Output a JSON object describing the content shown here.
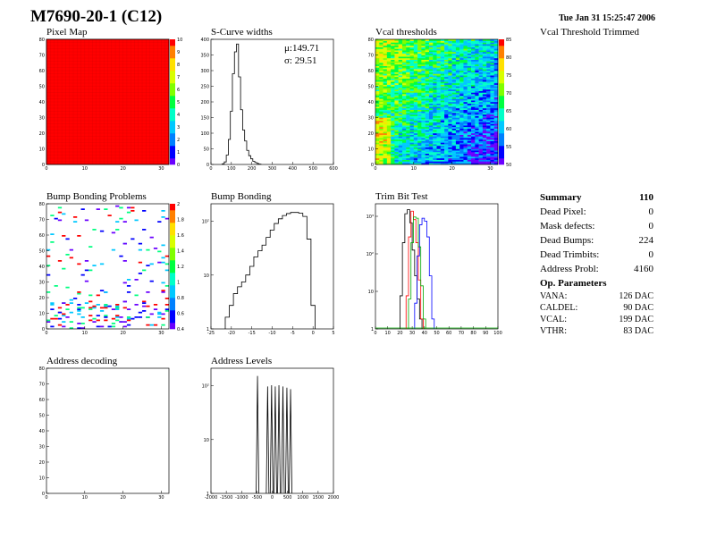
{
  "header": {
    "title": "M7690-20-1 (C12)",
    "date": "Tue Jan 31 15:25:47 2006"
  },
  "side_label": "Vcal Threshold Trimmed",
  "summary": {
    "title": "Summary",
    "total": "110",
    "rows": [
      {
        "label": "Dead Pixel:",
        "value": "0"
      },
      {
        "label": "Mask defects:",
        "value": "0"
      },
      {
        "label": "Dead Bumps:",
        "value": "224"
      },
      {
        "label": "Dead Trimbits:",
        "value": "0"
      },
      {
        "label": "Address Probl:",
        "value": "4160"
      }
    ]
  },
  "op_params": {
    "title": "Op. Parameters",
    "rows": [
      {
        "label": "VANA:",
        "value": "126 DAC"
      },
      {
        "label": "CALDEL:",
        "value": "90 DAC"
      },
      {
        "label": "VCAL:",
        "value": "199 DAC"
      },
      {
        "label": "VTHR:",
        "value": "83 DAC"
      }
    ]
  },
  "chart_data": [
    {
      "id": "pixel-map",
      "type": "heatmap",
      "title": "Pixel Map",
      "xticks": [
        "0",
        "10",
        "20",
        "30"
      ],
      "yticks": [
        "0",
        "10",
        "20",
        "30",
        "40",
        "50",
        "60",
        "70",
        "80"
      ],
      "zticks": [
        "0",
        "1",
        "2",
        "3",
        "4",
        "5",
        "6",
        "7",
        "8",
        "9",
        "10"
      ],
      "xlim": [
        0,
        32
      ],
      "ylim": [
        0,
        80
      ],
      "zlim": [
        0,
        10
      ],
      "fill_value": 10,
      "fill_color": "#ff0000"
    },
    {
      "id": "s-curve-widths",
      "type": "histogram",
      "title": "S-Curve widths",
      "xticks": [
        "0",
        "100",
        "200",
        "300",
        "400",
        "500",
        "600"
      ],
      "yticks": [
        "0",
        "50",
        "100",
        "150",
        "200",
        "250",
        "300",
        "350",
        "400"
      ],
      "xlim": [
        0,
        600
      ],
      "ylim": [
        0,
        400
      ],
      "stats": [
        {
          "label": "μ:",
          "value": "149.71"
        },
        {
          "label": "σ:",
          "value": "29.51"
        }
      ],
      "x": [
        60,
        70,
        80,
        90,
        100,
        110,
        120,
        130,
        140,
        150,
        160,
        170,
        180,
        190,
        200,
        210,
        220,
        230,
        240
      ],
      "y": [
        2,
        8,
        30,
        80,
        170,
        290,
        360,
        385,
        280,
        175,
        110,
        75,
        45,
        28,
        18,
        10,
        6,
        3,
        1
      ]
    },
    {
      "id": "vcal-thresholds",
      "type": "heatmap",
      "title": "Vcal thresholds",
      "xticks": [
        "0",
        "10",
        "20",
        "30"
      ],
      "yticks": [
        "0",
        "10",
        "20",
        "30",
        "40",
        "50",
        "60",
        "70",
        "80"
      ],
      "zticks": [
        "50",
        "55",
        "60",
        "65",
        "70",
        "75",
        "80",
        "85"
      ],
      "xlim": [
        0,
        32
      ],
      "ylim": [
        0,
        80
      ],
      "zlim": [
        48,
        88
      ]
    },
    {
      "id": "bump-bonding-problems",
      "type": "heatmap",
      "title": "Bump Bonding Problems",
      "xticks": [
        "0",
        "10",
        "20",
        "30"
      ],
      "yticks": [
        "0",
        "10",
        "20",
        "30",
        "40",
        "50",
        "60",
        "70",
        "80"
      ],
      "zticks": [
        "0.4",
        "0.6",
        "0.8",
        "1",
        "1.2",
        "1.4",
        "1.6",
        "1.8",
        "2"
      ],
      "xlim": [
        0,
        32
      ],
      "ylim": [
        0,
        80
      ]
    },
    {
      "id": "bump-bonding",
      "type": "histogram",
      "title": "Bump Bonding",
      "yscale": "log",
      "xticks": [
        "-25",
        "-20",
        "-15",
        "-10",
        "-5",
        "0",
        "5"
      ],
      "yticks": [
        "1",
        "10",
        "10²"
      ],
      "xlim": [
        -25,
        5
      ],
      "ylim": [
        0.5,
        800
      ],
      "x": [
        -21,
        -20,
        -19,
        -18,
        -17,
        -16,
        -15,
        -14,
        -13,
        -12,
        -11,
        -10,
        -9,
        -8,
        -7,
        -6,
        -5,
        -4,
        -3,
        -2,
        -1,
        0
      ],
      "y": [
        1,
        2,
        4,
        6,
        8,
        12,
        20,
        35,
        50,
        70,
        110,
        170,
        250,
        330,
        400,
        450,
        480,
        480,
        460,
        380,
        100,
        2
      ]
    },
    {
      "id": "trim-bit-test",
      "type": "histogram",
      "title": "Trim Bit Test",
      "yscale": "log",
      "xticks": [
        "0",
        "10",
        "20",
        "30",
        "40",
        "50",
        "60",
        "70",
        "80",
        "90",
        "100"
      ],
      "yticks": [
        "1",
        "10",
        "10²",
        "10³"
      ],
      "xlim": [
        0,
        100
      ],
      "ylim": [
        0.5,
        3000
      ],
      "series": [
        {
          "color": "#000000",
          "x": [
            21,
            23,
            25,
            27,
            29,
            31,
            33,
            35,
            37
          ],
          "y": [
            5,
            200,
            1500,
            2000,
            800,
            120,
            20,
            4,
            1
          ]
        },
        {
          "color": "#ff0000",
          "x": [
            26,
            28,
            30,
            32,
            34,
            36,
            38
          ],
          "y": [
            5,
            300,
            1800,
            1000,
            200,
            15,
            1
          ]
        },
        {
          "color": "#00aa00",
          "x": [
            28,
            30,
            32,
            34,
            36,
            38,
            40
          ],
          "y": [
            4,
            200,
            1200,
            1100,
            150,
            10,
            1
          ]
        },
        {
          "color": "#0000ff",
          "x": [
            33,
            35,
            37,
            39,
            41,
            43,
            45,
            47
          ],
          "y": [
            3,
            80,
            700,
            1100,
            900,
            300,
            20,
            1
          ]
        }
      ]
    },
    {
      "id": "address-decoding",
      "type": "heatmap",
      "title": "Address decoding",
      "xticks": [
        "0",
        "10",
        "20",
        "30"
      ],
      "yticks": [
        "0",
        "10",
        "20",
        "30",
        "40",
        "50",
        "60",
        "70",
        "80"
      ],
      "xlim": [
        0,
        32
      ],
      "ylim": [
        0,
        80
      ]
    },
    {
      "id": "address-levels",
      "type": "histogram",
      "title": "Address Levels",
      "yscale": "log",
      "xticks": [
        "-2000",
        "-1500",
        "-1000",
        "-500",
        "0",
        "500",
        "1000",
        "1500",
        "2000"
      ],
      "yticks": [
        "1",
        "10",
        "10²"
      ],
      "xlim": [
        -2000,
        2000
      ],
      "ylim": [
        0.5,
        2000
      ],
      "x": [
        -480,
        -150,
        -20,
        100,
        220,
        350,
        480,
        600
      ],
      "y": [
        1200,
        600,
        650,
        600,
        650,
        600,
        550,
        500
      ]
    }
  ]
}
